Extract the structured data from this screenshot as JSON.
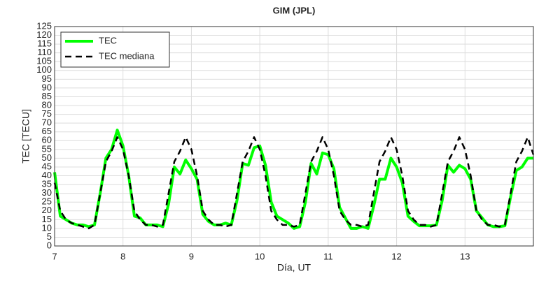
{
  "chart_data": {
    "type": "line",
    "title": "GIM (JPL)",
    "x_label": "Día, UT",
    "y_label": "TEC [TECU]",
    "x": [
      7,
      7.0833,
      7.1667,
      7.25,
      7.3333,
      7.4167,
      7.5,
      7.5833,
      7.6667,
      7.75,
      7.8333,
      7.9167,
      8,
      8.0833,
      8.1667,
      8.25,
      8.3333,
      8.4167,
      8.5,
      8.5833,
      8.6667,
      8.75,
      8.8333,
      8.9167,
      9,
      9.0833,
      9.1667,
      9.25,
      9.3333,
      9.4167,
      9.5,
      9.5833,
      9.6667,
      9.75,
      9.8333,
      9.9167,
      10,
      10.0833,
      10.1667,
      10.25,
      10.3333,
      10.4167,
      10.5,
      10.5833,
      10.6667,
      10.75,
      10.8333,
      10.9167,
      11,
      11.0833,
      11.1667,
      11.25,
      11.3333,
      11.4167,
      11.5,
      11.5833,
      11.6667,
      11.75,
      11.8333,
      11.9167,
      12,
      12.0833,
      12.1667,
      12.25,
      12.3333,
      12.4167,
      12.5,
      12.5833,
      12.6667,
      12.75,
      12.8333,
      12.9167,
      13,
      13.0833,
      13.1667,
      13.25,
      13.3333,
      13.4167,
      13.5,
      13.5833,
      13.6667,
      13.75,
      13.8333,
      13.9167,
      14
    ],
    "series": [
      {
        "name": "TEC",
        "color": "#00ff00",
        "values": [
          42,
          17,
          15,
          13,
          12,
          12,
          11,
          12,
          30,
          50,
          55,
          66,
          57,
          40,
          17,
          16,
          12,
          12,
          12,
          11,
          24,
          45,
          41,
          49,
          44,
          38,
          18,
          14,
          12,
          12,
          13,
          12,
          26,
          47,
          46,
          56,
          57,
          46,
          25,
          17,
          15,
          13,
          10,
          11,
          25,
          47,
          41,
          53,
          52,
          44,
          22,
          16,
          10,
          10,
          11,
          10,
          23,
          38,
          38,
          50,
          45,
          36,
          17,
          14,
          11.5,
          11.5,
          11.5,
          12,
          26,
          46,
          42,
          46,
          44,
          38,
          20,
          16,
          12,
          11,
          11,
          11.5,
          28,
          43,
          45,
          50,
          50
        ]
      },
      {
        "name": "TEC mediana",
        "color": "#000000",
        "dashed": true,
        "values": [
          36,
          20,
          15,
          13,
          12,
          11,
          10,
          12,
          30,
          48,
          54,
          62,
          55,
          40,
          20,
          15,
          12,
          12,
          11,
          12,
          30,
          48,
          54,
          62,
          55,
          40,
          20,
          15,
          12,
          12,
          11,
          12,
          30,
          48,
          54,
          62,
          55,
          40,
          20,
          15,
          12,
          12,
          11,
          12,
          30,
          48,
          54,
          62,
          55,
          40,
          20,
          15,
          12,
          12,
          11,
          12,
          30,
          48,
          54,
          62,
          55,
          40,
          20,
          15,
          12,
          12,
          11,
          12,
          30,
          48,
          54,
          62,
          55,
          40,
          20,
          15,
          12,
          12,
          11,
          12,
          30,
          48,
          54,
          62,
          52
        ]
      }
    ],
    "xlim": [
      7,
      14
    ],
    "xticks": [
      7,
      8,
      9,
      10,
      11,
      12,
      13
    ],
    "ylim": [
      0,
      125
    ],
    "yticks": [
      0,
      5,
      10,
      15,
      20,
      25,
      30,
      35,
      40,
      45,
      50,
      55,
      60,
      65,
      70,
      75,
      80,
      85,
      90,
      95,
      100,
      105,
      110,
      115,
      120,
      125
    ],
    "grid": true,
    "legend": "upper left"
  }
}
